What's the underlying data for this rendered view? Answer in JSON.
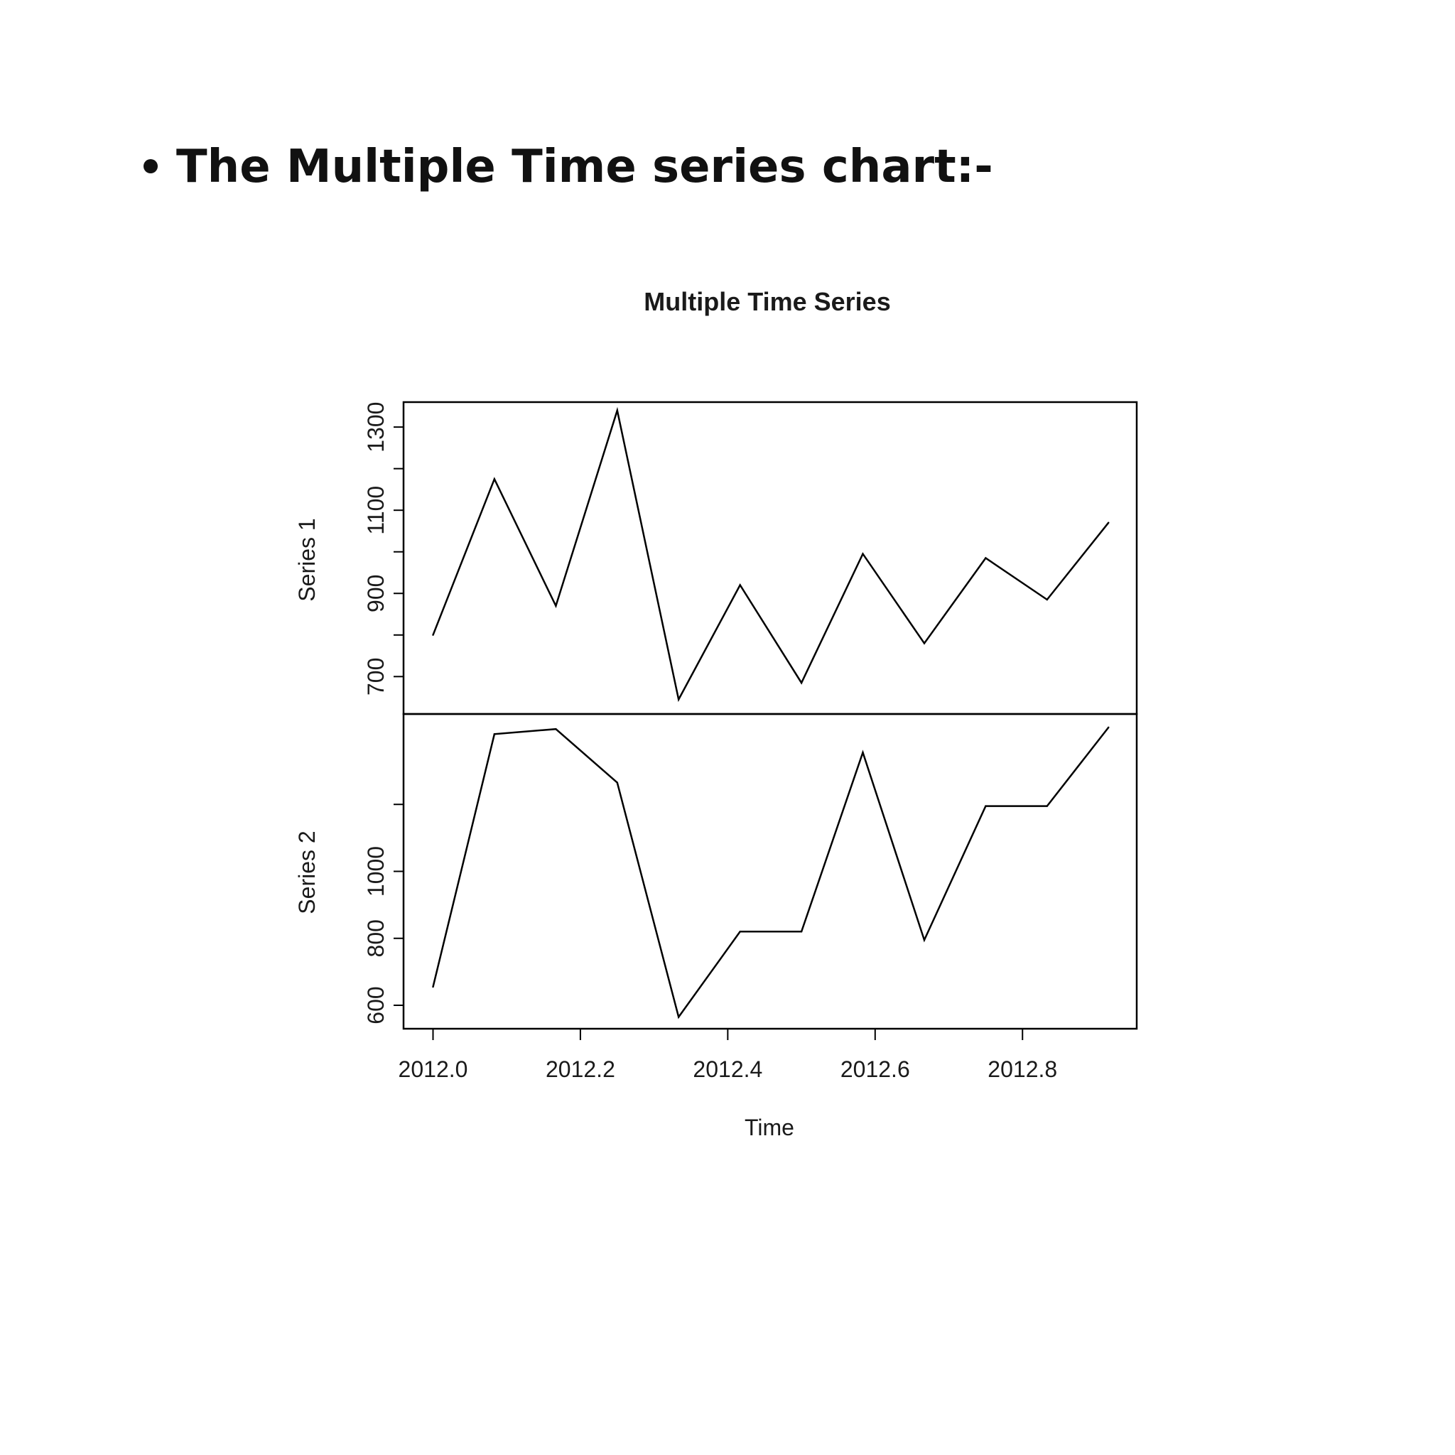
{
  "heading": {
    "text": "The Multiple Time series chart:-"
  },
  "chart_data": {
    "type": "line",
    "title": "Multiple Time Series",
    "xlabel": "Time",
    "xlim": [
      2011.96,
      2012.955
    ],
    "x_ticks": [
      "2012.0",
      "2012.2",
      "2012.4",
      "2012.6",
      "2012.8"
    ],
    "x": [
      2012.0,
      2012.0833,
      2012.1667,
      2012.25,
      2012.3333,
      2012.4167,
      2012.5,
      2012.5833,
      2012.6667,
      2012.75,
      2012.8333,
      2012.9167
    ],
    "series": [
      {
        "name": "Series 1",
        "ylim": [
          610,
          1360
        ],
        "y_ticks": [
          "700",
          "900",
          "1100",
          "1300"
        ],
        "y_minor_ticks": [
          800,
          1000,
          1200
        ],
        "values": [
          800,
          1175,
          870,
          1340,
          645,
          920,
          685,
          995,
          780,
          985,
          885,
          1070
        ]
      },
      {
        "name": "Series 2",
        "ylim": [
          530,
          1470
        ],
        "y_ticks": [
          "600",
          "800",
          "1000"
        ],
        "y_minor_ticks": [
          1200
        ],
        "values": [
          655,
          1410,
          1425,
          1265,
          565,
          820,
          820,
          1355,
          795,
          1195,
          1195,
          1430
        ]
      }
    ],
    "line_color": "#000000",
    "grid": false,
    "legend": "none"
  }
}
